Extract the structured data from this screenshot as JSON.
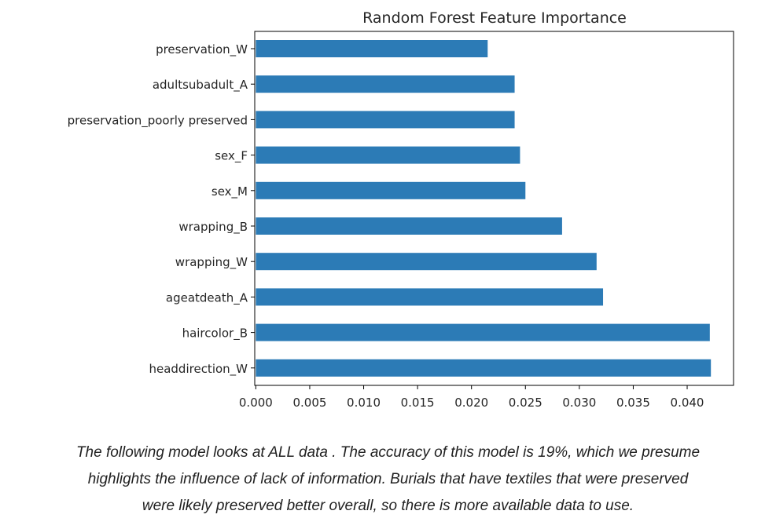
{
  "chart_data": {
    "type": "bar",
    "orientation": "horizontal",
    "title": "Random Forest Feature Importance",
    "xlabel": "",
    "ylabel": "",
    "categories": [
      "preservation_W",
      "adultsubadult_A",
      "preservation_poorly preserved",
      "sex_F",
      "sex_M",
      "wrapping_B",
      "wrapping_W",
      "ageatdeath_A",
      "haircolor_B",
      "headdirection_W"
    ],
    "values": [
      0.0215,
      0.024,
      0.024,
      0.0245,
      0.025,
      0.0284,
      0.0316,
      0.0322,
      0.0421,
      0.0422
    ],
    "xlim": [
      -0.0001,
      0.0443
    ],
    "xticks": [
      "0.000",
      "0.005",
      "0.010",
      "0.015",
      "0.020",
      "0.025",
      "0.030",
      "0.035",
      "0.040"
    ],
    "bar_color": "#2c7bb6",
    "grid": false,
    "legend": "none"
  },
  "caption": {
    "line1": "The following model looks at ALL data . The accuracy of this model is 19%, which we presume",
    "line2": "highlights the influence of lack of information. Burials that have textiles that were preserved",
    "line3": "were likely preserved better overall, so there is more available data to use."
  }
}
